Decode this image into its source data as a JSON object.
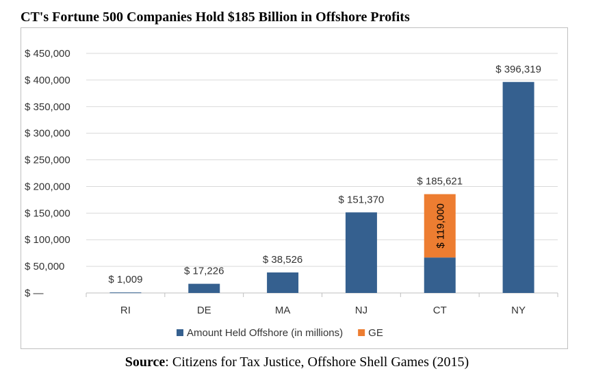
{
  "title": "CT's Fortune 500 Companies Hold $185 Billion in Offshore Profits",
  "source": {
    "label": "Source",
    "separator": ": ",
    "text": "Citizens for Tax Justice, Offshore Shell Games (2015)"
  },
  "colors": {
    "series_offshore": "#35608f",
    "series_ge": "#ed7d31",
    "gridline": "#d9d9d9",
    "axis": "#bfbfbf",
    "text": "#333333"
  },
  "chart_data": {
    "type": "bar",
    "stacked": true,
    "title": "CT's Fortune 500 Companies Hold $185 Billion in Offshore Profits",
    "xlabel": "",
    "ylabel": "",
    "ylim": [
      0,
      450000
    ],
    "yticks": [
      0,
      50000,
      100000,
      150000,
      200000,
      250000,
      300000,
      350000,
      400000,
      450000
    ],
    "ytick_labels": [
      "$  —",
      "$ 50,000",
      "$ 100,000",
      "$ 150,000",
      "$ 200,000",
      "$ 250,000",
      "$ 300,000",
      "$ 350,000",
      "$ 400,000",
      "$ 450,000"
    ],
    "categories": [
      "RI",
      "DE",
      "MA",
      "NJ",
      "CT",
      "NY"
    ],
    "series": [
      {
        "name": "Amount Held Offshore (in millions)",
        "values": [
          1009,
          17226,
          38526,
          151370,
          66621,
          396319
        ]
      },
      {
        "name": "GE",
        "values": [
          0,
          0,
          0,
          0,
          119000,
          0
        ]
      }
    ],
    "total_labels": [
      "$ 1,009",
      "$ 17,226",
      "$ 38,526",
      "$ 151,370",
      "$ 185,621",
      "$ 396,319"
    ],
    "segment_labels": [
      {
        "category": "CT",
        "series": "GE",
        "text": "$ 119,000"
      }
    ],
    "legend": {
      "position": "bottom",
      "entries": [
        "Amount Held Offshore (in millions)",
        "GE"
      ]
    },
    "grid": true
  }
}
